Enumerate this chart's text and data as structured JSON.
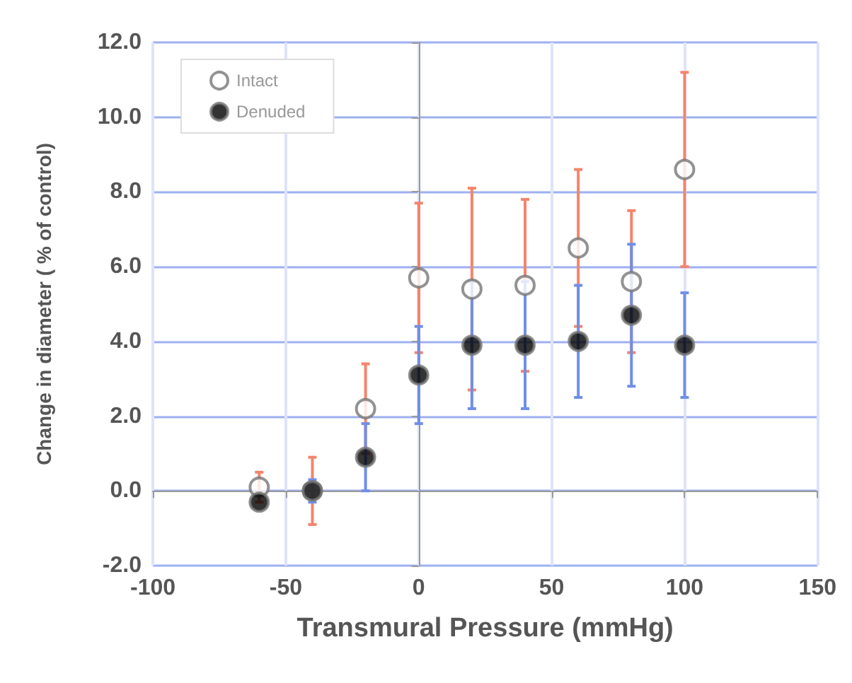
{
  "chart_data": {
    "type": "scatter",
    "xlabel": "Transmural Pressure (mmHg)",
    "ylabel": "Change in diameter ( % of control)",
    "x": [
      -60,
      -40,
      -20,
      0,
      20,
      40,
      60,
      80,
      100
    ],
    "series": [
      {
        "name": "Intact",
        "color": "#ffffff",
        "values": [
          0.1,
          0.0,
          2.2,
          5.7,
          5.4,
          5.5,
          6.5,
          5.6,
          8.6
        ],
        "errors": [
          0.4,
          0.9,
          1.2,
          2.0,
          2.7,
          2.3,
          2.1,
          1.9,
          2.6
        ]
      },
      {
        "name": "Denuded",
        "color": "#000000",
        "values": [
          -0.3,
          0.0,
          0.9,
          3.1,
          3.9,
          3.9,
          4.0,
          4.7,
          3.9
        ],
        "errors": [
          null,
          0.3,
          0.9,
          1.3,
          1.7,
          1.7,
          1.5,
          1.9,
          1.4
        ]
      }
    ],
    "xlim": [
      -100,
      150
    ],
    "xticks": [
      -100,
      -50,
      0,
      50,
      100,
      150
    ],
    "ylim": [
      -2,
      12
    ],
    "yticks": [
      {
        "value": -2,
        "label": "-2.0"
      },
      {
        "value": 0,
        "label": "0.0"
      },
      {
        "value": 2,
        "label": "2.0"
      },
      {
        "value": 4,
        "label": "4.0"
      },
      {
        "value": 6,
        "label": "6.0"
      },
      {
        "value": 8,
        "label": "8.0"
      },
      {
        "value": 10,
        "label": "10.0"
      },
      {
        "value": 12,
        "label": "12.0"
      }
    ],
    "grid": true,
    "legend": "top left",
    "marker": "circle"
  }
}
